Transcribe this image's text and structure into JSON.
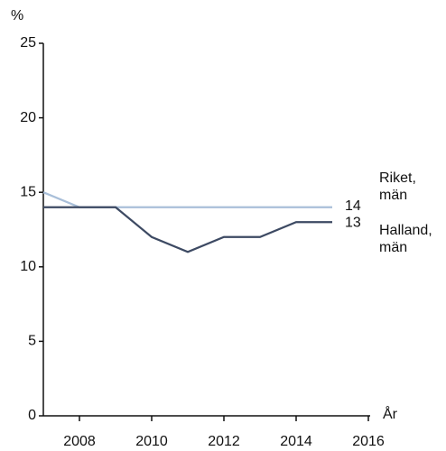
{
  "chart_data": {
    "type": "line",
    "y_label": "%",
    "x_label": "År",
    "x": [
      2007,
      2008,
      2009,
      2010,
      2011,
      2012,
      2013,
      2014,
      2015
    ],
    "series": [
      {
        "name": "Riket, män",
        "color": "#a9bfd9",
        "values": [
          15,
          14,
          14,
          14,
          14,
          14,
          14,
          14,
          14
        ]
      },
      {
        "name": "Halland, män",
        "color": "#3d4a63",
        "values": [
          14,
          14,
          14,
          12,
          11,
          12,
          12,
          13,
          13
        ]
      }
    ],
    "xlim": [
      2007,
      2016
    ],
    "xticks": [
      2008,
      2010,
      2012,
      2014,
      2016
    ],
    "ylim": [
      0,
      25
    ],
    "yticks": [
      0,
      5,
      10,
      15,
      20,
      25
    ],
    "grid": false
  }
}
